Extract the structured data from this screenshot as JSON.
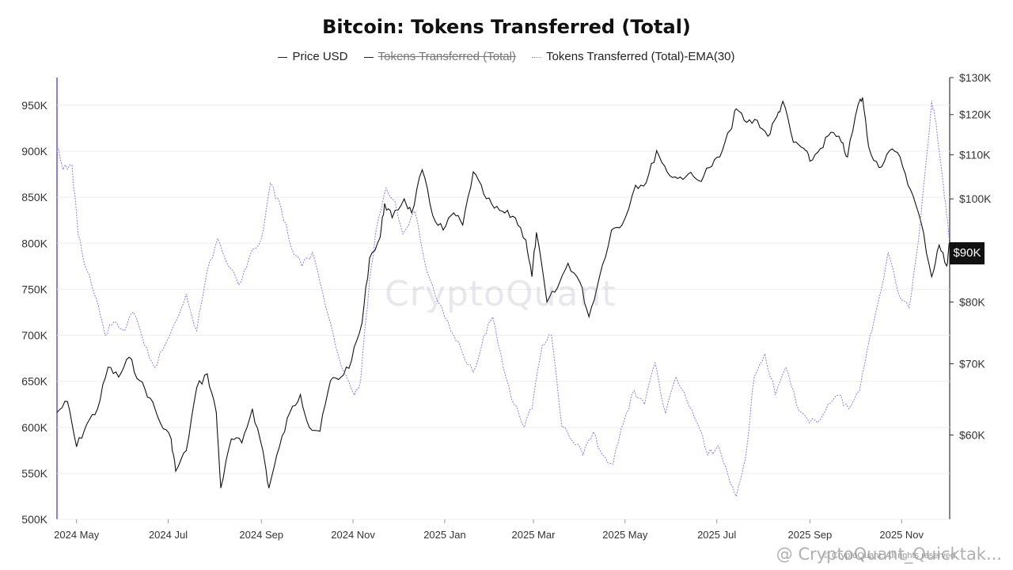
{
  "chart_data": {
    "type": "line",
    "title": "Bitcoin: Tokens Transferred (Total)",
    "legend": [
      {
        "label": "Price USD",
        "style": "solid",
        "color": "#222222",
        "hidden": false
      },
      {
        "label": "Tokens Transferred (Total)",
        "style": "solid",
        "color": "#222222",
        "hidden": true
      },
      {
        "label": "Tokens Transferred (Total)-EMA(30)",
        "style": "dotted",
        "color": "#8a7cf0",
        "hidden": false
      }
    ],
    "legend_position": "top-center",
    "x_ticks": [
      "2024 May",
      "2024 Jul",
      "2024 Sep",
      "2024 Nov",
      "2025 Jan",
      "2025 Mar",
      "2025 May",
      "2025 Jul",
      "2025 Sep",
      "2025 Nov"
    ],
    "x_range": [
      "2024-04-18",
      "2025-12-03"
    ],
    "left_axis": {
      "ylim": [
        500000,
        980000
      ],
      "ticks": [
        "500K",
        "550K",
        "600K",
        "650K",
        "700K",
        "750K",
        "800K",
        "850K",
        "900K",
        "950K"
      ],
      "tick_values": [
        500000,
        550000,
        600000,
        650000,
        700000,
        750000,
        800000,
        850000,
        900000,
        950000
      ]
    },
    "right_axis": {
      "scale": "log",
      "ylim": [
        50000,
        130000
      ],
      "ticks": [
        "$60K",
        "$70K",
        "$80K",
        "$90K",
        "$100K",
        "$110K",
        "$120K",
        "$130K"
      ],
      "tick_values": [
        60000,
        70000,
        80000,
        90000,
        100000,
        110000,
        120000,
        130000
      ]
    },
    "current_price_label": "$90K",
    "grid": true,
    "series": [
      {
        "name": "Price USD",
        "axis": "right",
        "color": "#111111",
        "points": [
          [
            "2024-04-18",
            63000
          ],
          [
            "2024-04-25",
            64500
          ],
          [
            "2024-05-01",
            58500
          ],
          [
            "2024-05-08",
            61500
          ],
          [
            "2024-05-15",
            63500
          ],
          [
            "2024-05-22",
            69500
          ],
          [
            "2024-05-29",
            68000
          ],
          [
            "2024-06-05",
            71000
          ],
          [
            "2024-06-12",
            67500
          ],
          [
            "2024-06-19",
            65000
          ],
          [
            "2024-06-26",
            61500
          ],
          [
            "2024-07-03",
            59500
          ],
          [
            "2024-07-06",
            55500
          ],
          [
            "2024-07-13",
            58000
          ],
          [
            "2024-07-20",
            66500
          ],
          [
            "2024-07-27",
            68500
          ],
          [
            "2024-08-02",
            63000
          ],
          [
            "2024-08-05",
            53500
          ],
          [
            "2024-08-12",
            59500
          ],
          [
            "2024-08-19",
            59000
          ],
          [
            "2024-08-26",
            63500
          ],
          [
            "2024-09-02",
            58000
          ],
          [
            "2024-09-06",
            53500
          ],
          [
            "2024-09-13",
            58500
          ],
          [
            "2024-09-20",
            63000
          ],
          [
            "2024-09-27",
            65500
          ],
          [
            "2024-10-03",
            61000
          ],
          [
            "2024-10-10",
            60500
          ],
          [
            "2024-10-17",
            67500
          ],
          [
            "2024-10-24",
            68000
          ],
          [
            "2024-10-31",
            70500
          ],
          [
            "2024-11-07",
            76500
          ],
          [
            "2024-11-12",
            88000
          ],
          [
            "2024-11-19",
            92000
          ],
          [
            "2024-11-22",
            99000
          ],
          [
            "2024-11-27",
            96000
          ],
          [
            "2024-12-05",
            100000
          ],
          [
            "2024-12-10",
            97000
          ],
          [
            "2024-12-17",
            106500
          ],
          [
            "2024-12-24",
            96500
          ],
          [
            "2024-12-31",
            93500
          ],
          [
            "2025-01-07",
            97000
          ],
          [
            "2025-01-13",
            94500
          ],
          [
            "2025-01-20",
            106000
          ],
          [
            "2025-01-27",
            101000
          ],
          [
            "2025-02-03",
            98000
          ],
          [
            "2025-02-10",
            97000
          ],
          [
            "2025-02-17",
            96000
          ],
          [
            "2025-02-24",
            91500
          ],
          [
            "2025-02-28",
            84500
          ],
          [
            "2025-03-03",
            93000
          ],
          [
            "2025-03-10",
            80000
          ],
          [
            "2025-03-17",
            82500
          ],
          [
            "2025-03-24",
            87000
          ],
          [
            "2025-04-01",
            83500
          ],
          [
            "2025-04-07",
            77500
          ],
          [
            "2025-04-14",
            84500
          ],
          [
            "2025-04-22",
            93500
          ],
          [
            "2025-04-29",
            94500
          ],
          [
            "2025-05-08",
            103000
          ],
          [
            "2025-05-15",
            103500
          ],
          [
            "2025-05-22",
            111000
          ],
          [
            "2025-05-29",
            106000
          ],
          [
            "2025-06-05",
            104500
          ],
          [
            "2025-06-12",
            105500
          ],
          [
            "2025-06-19",
            104000
          ],
          [
            "2025-06-26",
            107000
          ],
          [
            "2025-07-03",
            109500
          ],
          [
            "2025-07-10",
            116000
          ],
          [
            "2025-07-14",
            121500
          ],
          [
            "2025-07-21",
            118000
          ],
          [
            "2025-07-28",
            118500
          ],
          [
            "2025-08-04",
            114500
          ],
          [
            "2025-08-10",
            119500
          ],
          [
            "2025-08-14",
            123500
          ],
          [
            "2025-08-21",
            113000
          ],
          [
            "2025-08-28",
            111500
          ],
          [
            "2025-09-01",
            108500
          ],
          [
            "2025-09-08",
            111500
          ],
          [
            "2025-09-15",
            115500
          ],
          [
            "2025-09-22",
            113000
          ],
          [
            "2025-09-26",
            109500
          ],
          [
            "2025-10-03",
            122500
          ],
          [
            "2025-10-06",
            124500
          ],
          [
            "2025-10-10",
            112000
          ],
          [
            "2025-10-17",
            107000
          ],
          [
            "2025-10-24",
            111000
          ],
          [
            "2025-10-31",
            109500
          ],
          [
            "2025-11-07",
            102000
          ],
          [
            "2025-11-14",
            95000
          ],
          [
            "2025-11-21",
            84500
          ],
          [
            "2025-11-26",
            90500
          ],
          [
            "2025-12-01",
            86500
          ],
          [
            "2025-12-03",
            91500
          ]
        ]
      },
      {
        "name": "Tokens Transferred (Total)-EMA(30)",
        "axis": "left",
        "color": "#8a7cf0",
        "points": [
          [
            "2024-04-18",
            905000
          ],
          [
            "2024-04-22",
            880000
          ],
          [
            "2024-04-28",
            885000
          ],
          [
            "2024-05-02",
            810000
          ],
          [
            "2024-05-08",
            770000
          ],
          [
            "2024-05-14",
            740000
          ],
          [
            "2024-05-20",
            700000
          ],
          [
            "2024-05-26",
            715000
          ],
          [
            "2024-06-02",
            705000
          ],
          [
            "2024-06-08",
            725000
          ],
          [
            "2024-06-15",
            690000
          ],
          [
            "2024-06-22",
            665000
          ],
          [
            "2024-06-29",
            690000
          ],
          [
            "2024-07-06",
            715000
          ],
          [
            "2024-07-13",
            745000
          ],
          [
            "2024-07-20",
            705000
          ],
          [
            "2024-07-27",
            770000
          ],
          [
            "2024-08-03",
            805000
          ],
          [
            "2024-08-10",
            775000
          ],
          [
            "2024-08-17",
            755000
          ],
          [
            "2024-08-24",
            785000
          ],
          [
            "2024-09-01",
            805000
          ],
          [
            "2024-09-07",
            865000
          ],
          [
            "2024-09-14",
            840000
          ],
          [
            "2024-09-21",
            795000
          ],
          [
            "2024-09-28",
            775000
          ],
          [
            "2024-10-05",
            790000
          ],
          [
            "2024-10-12",
            745000
          ],
          [
            "2024-10-19",
            700000
          ],
          [
            "2024-10-26",
            660000
          ],
          [
            "2024-11-02",
            635000
          ],
          [
            "2024-11-06",
            650000
          ],
          [
            "2024-11-12",
            760000
          ],
          [
            "2024-11-17",
            820000
          ],
          [
            "2024-11-23",
            860000
          ],
          [
            "2024-11-29",
            845000
          ],
          [
            "2024-12-04",
            810000
          ],
          [
            "2024-12-12",
            835000
          ],
          [
            "2024-12-20",
            770000
          ],
          [
            "2024-12-28",
            735000
          ],
          [
            "2025-01-05",
            705000
          ],
          [
            "2025-01-12",
            685000
          ],
          [
            "2025-01-20",
            660000
          ],
          [
            "2025-01-27",
            700000
          ],
          [
            "2025-02-02",
            720000
          ],
          [
            "2025-02-09",
            665000
          ],
          [
            "2025-02-16",
            625000
          ],
          [
            "2025-02-23",
            600000
          ],
          [
            "2025-02-28",
            620000
          ],
          [
            "2025-03-07",
            690000
          ],
          [
            "2025-03-13",
            700000
          ],
          [
            "2025-03-20",
            600000
          ],
          [
            "2025-03-27",
            585000
          ],
          [
            "2025-04-03",
            570000
          ],
          [
            "2025-04-10",
            595000
          ],
          [
            "2025-04-16",
            570000
          ],
          [
            "2025-04-23",
            560000
          ],
          [
            "2025-04-30",
            605000
          ],
          [
            "2025-05-07",
            640000
          ],
          [
            "2025-05-14",
            625000
          ],
          [
            "2025-05-21",
            670000
          ],
          [
            "2025-05-28",
            615000
          ],
          [
            "2025-06-04",
            655000
          ],
          [
            "2025-06-11",
            630000
          ],
          [
            "2025-06-18",
            605000
          ],
          [
            "2025-06-25",
            570000
          ],
          [
            "2025-07-02",
            580000
          ],
          [
            "2025-07-09",
            545000
          ],
          [
            "2025-07-14",
            525000
          ],
          [
            "2025-07-20",
            565000
          ],
          [
            "2025-07-26",
            655000
          ],
          [
            "2025-08-02",
            680000
          ],
          [
            "2025-08-09",
            635000
          ],
          [
            "2025-08-16",
            665000
          ],
          [
            "2025-08-23",
            625000
          ],
          [
            "2025-08-30",
            610000
          ],
          [
            "2025-09-06",
            605000
          ],
          [
            "2025-09-13",
            625000
          ],
          [
            "2025-09-20",
            635000
          ],
          [
            "2025-09-27",
            620000
          ],
          [
            "2025-10-04",
            640000
          ],
          [
            "2025-10-11",
            700000
          ],
          [
            "2025-10-17",
            740000
          ],
          [
            "2025-10-23",
            790000
          ],
          [
            "2025-10-30",
            745000
          ],
          [
            "2025-11-06",
            730000
          ],
          [
            "2025-11-12",
            800000
          ],
          [
            "2025-11-18",
            900000
          ],
          [
            "2025-11-21",
            955000
          ],
          [
            "2025-11-24",
            930000
          ],
          [
            "2025-11-28",
            875000
          ],
          [
            "2025-12-01",
            830000
          ],
          [
            "2025-12-03",
            800000
          ]
        ]
      }
    ]
  },
  "watermark": "CryptoQuant",
  "copyright": "© CryptoQuant. All rights reserved.",
  "footer_brand": "@ CryptoQuant_Quicktak..."
}
